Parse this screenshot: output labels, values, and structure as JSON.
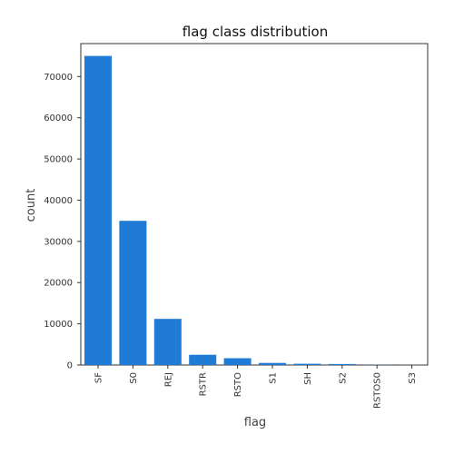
{
  "chart_data": {
    "type": "bar",
    "title": "flag class distribution",
    "xlabel": "flag",
    "ylabel": "count",
    "categories": [
      "SF",
      "S0",
      "REJ",
      "RSTR",
      "RSTO",
      "S1",
      "SH",
      "S2",
      "RSTOS0",
      "S3"
    ],
    "values": [
      75000,
      35000,
      11200,
      2500,
      1650,
      500,
      300,
      250,
      50,
      30
    ],
    "ylim": [
      0,
      78000
    ],
    "yticks": [
      0,
      10000,
      20000,
      30000,
      40000,
      50000,
      60000,
      70000
    ],
    "ytick_labels": [
      "0",
      "10000",
      "20000",
      "30000",
      "40000",
      "50000",
      "60000",
      "70000"
    ],
    "grid": false,
    "bar_color": "#1f7bd6"
  }
}
